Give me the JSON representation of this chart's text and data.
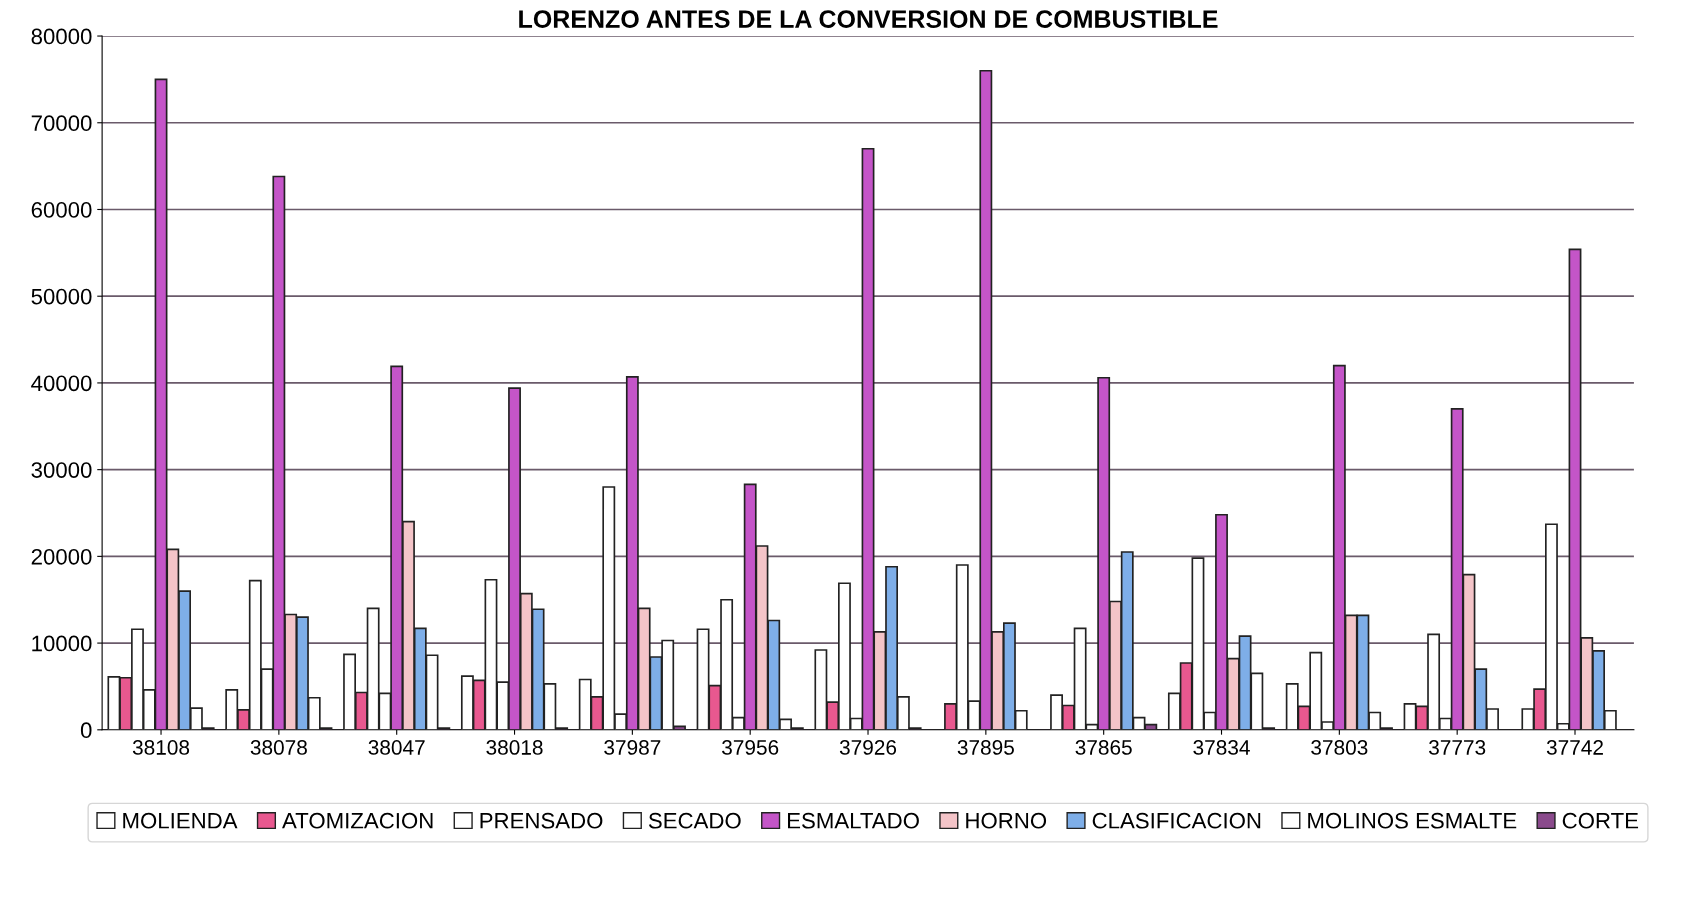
{
  "chart_data": {
    "type": "bar",
    "title": "LORENZO ANTES DE LA CONVERSION DE COMBUSTIBLE",
    "categories": [
      "38108",
      "38078",
      "38047",
      "38018",
      "37987",
      "37956",
      "37926",
      "37895",
      "37865",
      "37834",
      "37803",
      "37773",
      "37742"
    ],
    "series": [
      {
        "name": "MOLIENDA",
        "color": "#ffffff",
        "values": [
          6100,
          4600,
          8700,
          6200,
          5800,
          11600,
          9200,
          null,
          4000,
          4200,
          5300,
          3000,
          2400
        ]
      },
      {
        "name": "ATOMIZACION",
        "color": "#e8588f",
        "values": [
          6000,
          2300,
          4300,
          5700,
          3800,
          5100,
          3200,
          3000,
          2800,
          7700,
          2700,
          2700,
          4700
        ]
      },
      {
        "name": "PRENSADO",
        "color": "#ffffff",
        "values": [
          11600,
          17200,
          14000,
          17300,
          28000,
          15000,
          16900,
          19000,
          11700,
          19800,
          8900,
          11000,
          23700
        ]
      },
      {
        "name": "SECADO",
        "color": "#ffffff",
        "values": [
          4600,
          7000,
          4200,
          5500,
          1800,
          1400,
          1300,
          3300,
          600,
          2000,
          900,
          1300,
          700
        ]
      },
      {
        "name": "ESMALTADO",
        "color": "#c455c8",
        "values": [
          75000,
          63800,
          41900,
          39400,
          40700,
          28300,
          67000,
          76000,
          40600,
          24800,
          42000,
          37000,
          55400
        ]
      },
      {
        "name": "HORNO",
        "color": "#f4c4c8",
        "values": [
          20800,
          13300,
          24000,
          15700,
          14000,
          21200,
          11300,
          11300,
          14800,
          8200,
          13200,
          17900,
          10600
        ]
      },
      {
        "name": "CLASIFICACION",
        "color": "#7eaee8",
        "values": [
          16000,
          13000,
          11700,
          13900,
          8400,
          12600,
          18800,
          12300,
          20500,
          10800,
          13200,
          7000,
          9100
        ]
      },
      {
        "name": "MOLINOS ESMALTE",
        "color": "#ffffff",
        "values": [
          2500,
          3700,
          8600,
          5300,
          10300,
          1200,
          3800,
          2200,
          1400,
          6500,
          2000,
          2400,
          2200
        ]
      },
      {
        "name": "CORTE",
        "color": "#8a4a8c",
        "values": [
          200,
          200,
          200,
          200,
          400,
          200,
          200,
          null,
          600,
          200,
          200,
          null,
          null
        ]
      }
    ],
    "ylim": [
      0,
      80000
    ],
    "yticks": [
      0,
      10000,
      20000,
      30000,
      40000,
      50000,
      60000,
      70000,
      80000
    ],
    "grid": "y",
    "legend": "bottom"
  }
}
